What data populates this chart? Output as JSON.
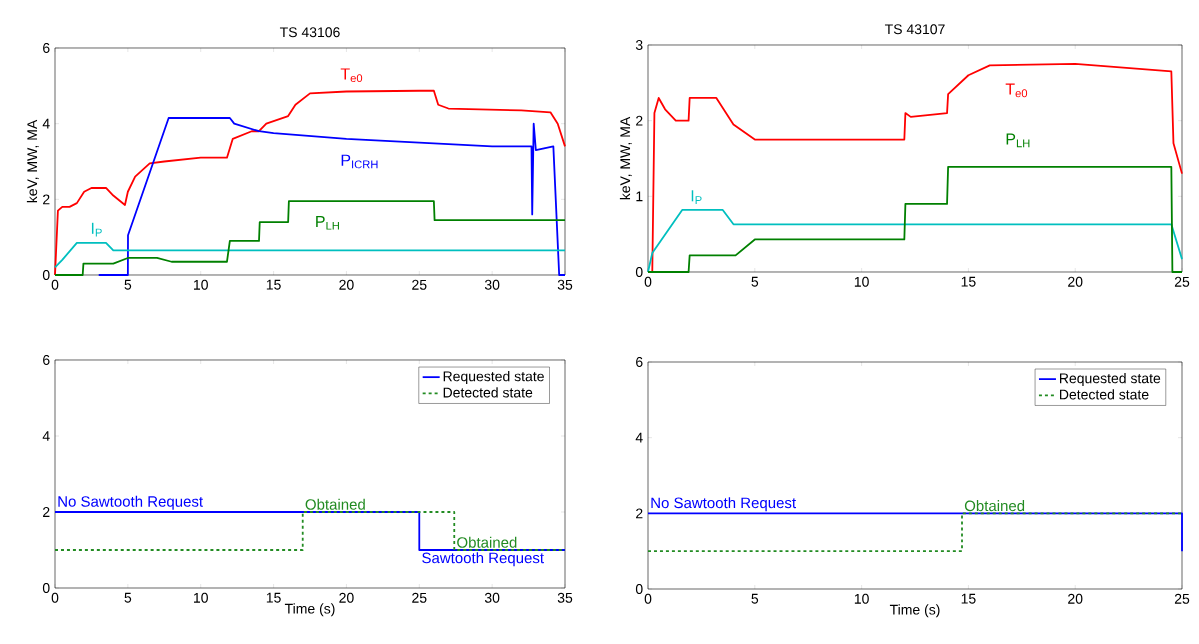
{
  "chart_data": [
    {
      "type": "line",
      "title": "TS 43106",
      "ylabel": "keV, MW, MA",
      "xlim": [
        0,
        35
      ],
      "ylim": [
        0,
        6
      ],
      "xticks": [
        0,
        5,
        10,
        15,
        20,
        25,
        30,
        35
      ],
      "yticks": [
        0,
        2,
        4,
        6
      ],
      "series": [
        {
          "name": "T$_{e0}$",
          "color": "#ff0000",
          "x": [
            0,
            0.2,
            0.5,
            1,
            1.5,
            2,
            2.5,
            3.5,
            4,
            4.8,
            5,
            5.5,
            6.5,
            7.5,
            10,
            11.8,
            12.2,
            13.5,
            14,
            14.5,
            16,
            16.5,
            17.5,
            20,
            25,
            26,
            26.3,
            27,
            32,
            34,
            34.5,
            35
          ],
          "values": [
            0,
            1.7,
            1.8,
            1.8,
            1.9,
            2.2,
            2.3,
            2.3,
            2.1,
            1.85,
            2.2,
            2.6,
            2.95,
            3.0,
            3.1,
            3.1,
            3.6,
            3.8,
            3.8,
            4.0,
            4.2,
            4.5,
            4.8,
            4.85,
            4.87,
            4.87,
            4.5,
            4.4,
            4.35,
            4.3,
            4.0,
            3.4
          ]
        },
        {
          "name": "P$_{ICRH}$",
          "color": "#0000ff",
          "x": [
            3,
            5,
            5.01,
            7.8,
            12,
            12.3,
            14,
            15,
            20,
            25,
            30,
            32.7,
            32.75,
            32.85,
            33,
            34.2,
            34.6,
            35
          ],
          "values": [
            0,
            0,
            1.05,
            4.15,
            4.15,
            4.0,
            3.8,
            3.75,
            3.6,
            3.5,
            3.4,
            3.4,
            1.6,
            4.0,
            3.3,
            3.4,
            0,
            0
          ]
        },
        {
          "name": "I$_{P}$",
          "color": "#00bfbf",
          "x": [
            0,
            0.5,
            1.5,
            3.5,
            4,
            35
          ],
          "values": [
            0.2,
            0.4,
            0.85,
            0.85,
            0.65,
            0.65
          ]
        },
        {
          "name": "P$_{LH}$",
          "color": "#008000",
          "x": [
            0,
            1.9,
            1.95,
            4,
            5,
            7,
            8,
            11.8,
            12,
            14,
            14.05,
            16,
            16.05,
            26,
            26.05,
            35
          ],
          "values": [
            0,
            0,
            0.3,
            0.3,
            0.45,
            0.45,
            0.35,
            0.35,
            0.9,
            0.9,
            1.4,
            1.4,
            1.95,
            1.95,
            1.45,
            1.45
          ]
        }
      ]
    },
    {
      "type": "line",
      "title": "TS 43107",
      "ylabel": "keV, MW, MA",
      "xlim": [
        0,
        25
      ],
      "ylim": [
        0,
        3
      ],
      "xticks": [
        0,
        5,
        10,
        15,
        20,
        25
      ],
      "yticks": [
        0,
        1,
        2,
        3
      ],
      "series": [
        {
          "name": "T$_{e0}$",
          "color": "#ff0000",
          "x": [
            0.2,
            0.3,
            0.5,
            0.8,
            1.3,
            1.9,
            1.95,
            3.2,
            4,
            5,
            12,
            12.05,
            12.3,
            14,
            14.05,
            15,
            16,
            20,
            24.5,
            24.6,
            25
          ],
          "values": [
            0,
            2.1,
            2.3,
            2.15,
            2.0,
            2.0,
            2.3,
            2.3,
            1.95,
            1.75,
            1.75,
            2.1,
            2.05,
            2.1,
            2.35,
            2.6,
            2.73,
            2.75,
            2.65,
            1.7,
            1.3
          ]
        },
        {
          "name": "I$_{P}$",
          "color": "#00bfbf",
          "x": [
            0,
            0.2,
            1.6,
            3.5,
            4,
            24.5,
            25
          ],
          "values": [
            0,
            0.25,
            0.82,
            0.82,
            0.63,
            0.63,
            0.17
          ]
        },
        {
          "name": "P$_{LH}$",
          "color": "#008000",
          "x": [
            0,
            1.9,
            1.95,
            4.1,
            5,
            12,
            12.05,
            14,
            14.05,
            24.5,
            24.55,
            25
          ],
          "values": [
            0,
            0,
            0.22,
            0.22,
            0.43,
            0.43,
            0.9,
            0.9,
            1.39,
            1.39,
            0,
            0
          ]
        }
      ]
    },
    {
      "type": "step",
      "xlabel": "Time (s)",
      "xlim": [
        0,
        35
      ],
      "ylim": [
        0,
        6
      ],
      "xticks": [
        0,
        5,
        10,
        15,
        20,
        25,
        30,
        35
      ],
      "yticks": [
        0,
        2,
        4,
        6
      ],
      "legend": "top right",
      "series": [
        {
          "name": "Requested state",
          "color": "#0000ff",
          "line_style": "solid",
          "x": [
            0,
            25,
            35
          ],
          "values": [
            2,
            1,
            1
          ]
        },
        {
          "name": "Detected state",
          "color": "#228b22",
          "line_style": "dashed",
          "x": [
            0,
            17,
            27.4,
            35
          ],
          "values": [
            1,
            2,
            1,
            1
          ]
        }
      ],
      "annotations": [
        {
          "text": "No Sawtooth Request",
          "x": 0,
          "y": 2
        },
        {
          "text": "Obtained",
          "x": 17,
          "y": 2
        },
        {
          "text": "Obtained",
          "x": 27.4,
          "y": 1
        },
        {
          "text": "Sawtooth Request",
          "x": 25,
          "y": 1
        }
      ]
    },
    {
      "type": "step",
      "xlabel": "Time (s)",
      "xlim": [
        0,
        25
      ],
      "ylim": [
        0,
        6
      ],
      "xticks": [
        0,
        5,
        10,
        15,
        20,
        25
      ],
      "yticks": [
        0,
        2,
        4,
        6
      ],
      "legend": "top right",
      "series": [
        {
          "name": "Requested state",
          "color": "#0000ff",
          "line_style": "solid",
          "x": [
            0,
            25,
            25
          ],
          "values": [
            2,
            2,
            1
          ]
        },
        {
          "name": "Detected state",
          "color": "#228b22",
          "line_style": "dashed",
          "x": [
            0,
            14.7,
            25
          ],
          "values": [
            1,
            2,
            2
          ]
        }
      ],
      "annotations": [
        {
          "text": "No Sawtooth Request",
          "x": 0,
          "y": 2
        },
        {
          "text": "Obtained",
          "x": 14.7,
          "y": 2
        }
      ]
    }
  ]
}
